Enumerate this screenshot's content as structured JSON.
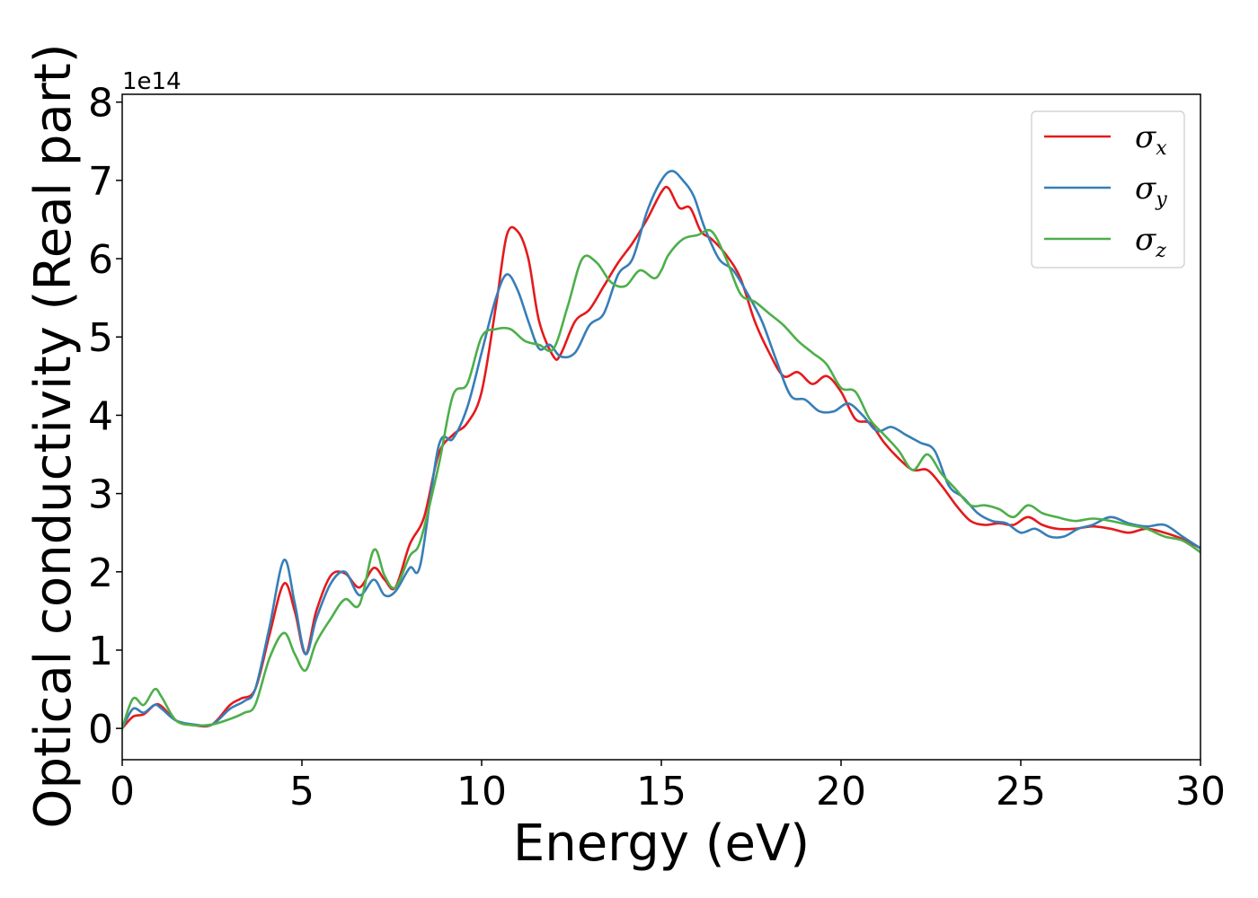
{
  "chart_data": {
    "type": "line",
    "title": "",
    "xlabel": "Energy (eV)",
    "ylabel": "Optical conductivity (Real part)",
    "y_offset_label": "1e14",
    "xlim": [
      0,
      30
    ],
    "ylim": [
      -0.4,
      8.1
    ],
    "xticks": [
      0,
      5,
      10,
      15,
      20,
      25,
      30
    ],
    "yticks": [
      0,
      1,
      2,
      3,
      4,
      5,
      6,
      7,
      8
    ],
    "grid": false,
    "legend_position": "top-right",
    "series": [
      {
        "name": "σx",
        "legend_symbol": "σ",
        "legend_subscript": "x",
        "color": "#e41a1c",
        "x": [
          0,
          0.3,
          0.6,
          0.9,
          1.1,
          1.5,
          2.0,
          2.5,
          3.0,
          3.3,
          3.7,
          4.1,
          4.5,
          4.8,
          5.1,
          5.4,
          5.8,
          6.2,
          6.6,
          7.0,
          7.3,
          7.6,
          8.0,
          8.4,
          8.8,
          9.2,
          9.6,
          10.0,
          10.4,
          10.7,
          11.0,
          11.3,
          11.6,
          12.0,
          12.2,
          12.6,
          13.0,
          13.4,
          13.8,
          14.2,
          14.6,
          15.0,
          15.2,
          15.5,
          15.8,
          16.1,
          16.4,
          16.8,
          17.2,
          17.6,
          18.0,
          18.4,
          18.8,
          19.2,
          19.6,
          20.0,
          20.4,
          20.8,
          21.2,
          21.6,
          22.0,
          22.4,
          22.8,
          23.2,
          23.6,
          24.0,
          24.4,
          24.8,
          25.2,
          25.6,
          26.0,
          26.5,
          27.0,
          27.5,
          28.0,
          28.5,
          29.0,
          29.5,
          30.0
        ],
        "y": [
          0.0,
          0.15,
          0.18,
          0.3,
          0.28,
          0.1,
          0.04,
          0.05,
          0.3,
          0.38,
          0.5,
          1.2,
          1.85,
          1.5,
          0.95,
          1.5,
          1.95,
          1.98,
          1.8,
          2.05,
          1.9,
          1.8,
          2.35,
          2.7,
          3.5,
          3.75,
          3.9,
          4.3,
          5.4,
          6.3,
          6.35,
          6.0,
          5.2,
          4.75,
          4.78,
          5.2,
          5.35,
          5.65,
          5.95,
          6.2,
          6.5,
          6.85,
          6.9,
          6.65,
          6.65,
          6.35,
          6.25,
          6.05,
          5.75,
          5.2,
          4.8,
          4.5,
          4.55,
          4.4,
          4.5,
          4.3,
          3.95,
          3.9,
          3.65,
          3.45,
          3.3,
          3.3,
          3.1,
          2.85,
          2.65,
          2.6,
          2.62,
          2.6,
          2.7,
          2.6,
          2.55,
          2.55,
          2.58,
          2.55,
          2.5,
          2.55,
          2.5,
          2.42,
          2.3
        ]
      },
      {
        "name": "σy",
        "legend_symbol": "σ",
        "legend_subscript": "y",
        "color": "#377eb8",
        "x": [
          0,
          0.3,
          0.6,
          0.9,
          1.1,
          1.5,
          2.0,
          2.5,
          3.0,
          3.4,
          3.7,
          4.1,
          4.5,
          4.8,
          5.1,
          5.4,
          5.8,
          6.2,
          6.6,
          7.0,
          7.3,
          7.6,
          8.0,
          8.3,
          8.8,
          9.2,
          9.6,
          10.0,
          10.4,
          10.7,
          11.0,
          11.3,
          11.6,
          11.9,
          12.2,
          12.6,
          13.0,
          13.4,
          13.8,
          14.2,
          14.6,
          15.0,
          15.3,
          15.6,
          15.9,
          16.2,
          16.6,
          17.0,
          17.4,
          17.8,
          18.2,
          18.6,
          19.0,
          19.4,
          19.8,
          20.2,
          20.6,
          21.0,
          21.4,
          21.8,
          22.2,
          22.6,
          23.0,
          23.4,
          23.8,
          24.2,
          24.6,
          25.0,
          25.4,
          25.8,
          26.2,
          26.6,
          27.0,
          27.5,
          28.0,
          28.5,
          29.0,
          29.5,
          30.0
        ],
        "y": [
          0.0,
          0.25,
          0.2,
          0.3,
          0.25,
          0.1,
          0.05,
          0.05,
          0.25,
          0.35,
          0.5,
          1.3,
          2.15,
          1.6,
          0.95,
          1.4,
          1.85,
          2.0,
          1.7,
          1.9,
          1.7,
          1.75,
          2.05,
          2.1,
          3.6,
          3.7,
          4.1,
          4.8,
          5.5,
          5.8,
          5.6,
          5.2,
          4.85,
          4.9,
          4.75,
          4.8,
          5.15,
          5.3,
          5.8,
          6.0,
          6.6,
          7.0,
          7.12,
          7.0,
          6.8,
          6.4,
          6.0,
          5.85,
          5.55,
          5.2,
          4.7,
          4.25,
          4.2,
          4.05,
          4.05,
          4.15,
          4.0,
          3.8,
          3.85,
          3.75,
          3.65,
          3.55,
          3.1,
          2.95,
          2.75,
          2.65,
          2.62,
          2.5,
          2.55,
          2.45,
          2.45,
          2.55,
          2.6,
          2.7,
          2.62,
          2.58,
          2.6,
          2.45,
          2.3
        ]
      },
      {
        "name": "σz",
        "legend_symbol": "σ",
        "legend_subscript": "z",
        "color": "#4daf4a",
        "x": [
          0,
          0.3,
          0.6,
          0.9,
          1.1,
          1.5,
          2.0,
          2.5,
          3.0,
          3.4,
          3.7,
          4.1,
          4.5,
          4.8,
          5.1,
          5.4,
          5.8,
          6.2,
          6.6,
          7.0,
          7.3,
          7.6,
          8.0,
          8.3,
          8.8,
          9.2,
          9.6,
          10.0,
          10.4,
          10.8,
          11.2,
          11.6,
          12.0,
          12.4,
          12.8,
          13.2,
          13.6,
          14.0,
          14.4,
          14.8,
          15.0,
          15.2,
          15.6,
          16.0,
          16.4,
          16.8,
          17.2,
          17.6,
          18.0,
          18.4,
          18.8,
          19.2,
          19.6,
          20.0,
          20.4,
          20.8,
          21.2,
          21.6,
          22.0,
          22.4,
          22.8,
          23.2,
          23.6,
          24.0,
          24.4,
          24.8,
          25.2,
          25.6,
          26.0,
          26.5,
          27.0,
          27.5,
          28.0,
          28.5,
          29.0,
          29.5,
          30.0
        ],
        "y": [
          0.0,
          0.38,
          0.3,
          0.5,
          0.4,
          0.1,
          0.04,
          0.05,
          0.12,
          0.2,
          0.3,
          0.9,
          1.22,
          0.95,
          0.74,
          1.1,
          1.4,
          1.65,
          1.58,
          2.28,
          1.95,
          1.8,
          2.2,
          2.4,
          3.35,
          4.25,
          4.4,
          5.0,
          5.1,
          5.1,
          4.95,
          4.9,
          4.85,
          5.4,
          6.0,
          5.95,
          5.7,
          5.65,
          5.85,
          5.75,
          5.85,
          6.05,
          6.25,
          6.3,
          6.35,
          6.0,
          5.55,
          5.45,
          5.3,
          5.15,
          4.95,
          4.8,
          4.65,
          4.35,
          4.3,
          3.95,
          3.75,
          3.55,
          3.3,
          3.5,
          3.25,
          3.05,
          2.85,
          2.85,
          2.8,
          2.7,
          2.85,
          2.75,
          2.7,
          2.65,
          2.68,
          2.65,
          2.6,
          2.55,
          2.45,
          2.4,
          2.25
        ]
      }
    ]
  }
}
